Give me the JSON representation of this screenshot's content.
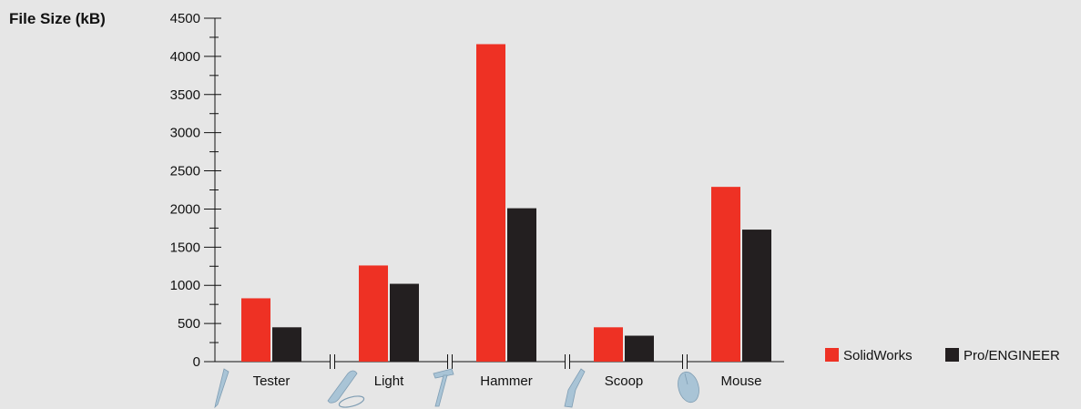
{
  "chart_data": {
    "type": "bar",
    "ylabel": "File Size (kB)",
    "xlabel": "",
    "ylim": [
      0,
      4500
    ],
    "yticks": [
      0,
      500,
      1000,
      1500,
      2000,
      2500,
      3000,
      3500,
      4000,
      4500
    ],
    "categories": [
      "Tester",
      "Light",
      "Hammer",
      "Scoop",
      "Mouse"
    ],
    "category_icons": [
      "pen-icon",
      "paperclip-light-icon",
      "hammer-icon",
      "scoop-icon",
      "mouse-icon"
    ],
    "series": [
      {
        "name": "SolidWorks",
        "color": "#ee3124",
        "values": [
          830,
          1260,
          4160,
          450,
          2290
        ]
      },
      {
        "name": "Pro/ENGINEER",
        "color": "#231f20",
        "values": [
          450,
          1020,
          2010,
          340,
          1730
        ]
      }
    ],
    "grid": false,
    "legend_position": "bottom-right",
    "axis_breaks": true
  }
}
